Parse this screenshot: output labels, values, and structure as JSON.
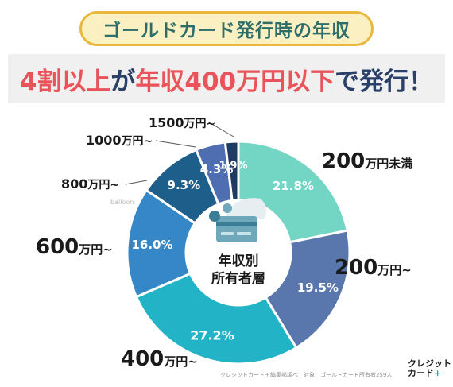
{
  "title": "ゴールドカード発行時の年収",
  "headline": {
    "part1": "4割以上",
    "part2": "が",
    "part3": "年収400万円以下",
    "part4": "で発行！"
  },
  "center_label": {
    "line1": "年収別",
    "line2": "所有者層"
  },
  "balloon_text": "balloon",
  "source_note": "クレジットカード＋編集部調べ　対象：ゴールドカード所有者259人",
  "brand": {
    "line1": "クレジット",
    "line2": "カード",
    "plus": "+"
  },
  "chart_data": {
    "type": "pie",
    "donut": true,
    "start_angle_deg": 0,
    "direction": "clockwise",
    "slices": [
      {
        "num": "200",
        "unit": "万円未満",
        "value": 21.8,
        "value_label": "21.8%",
        "color": "#73d6c5"
      },
      {
        "num": "200",
        "unit": "万円~",
        "value": 19.5,
        "value_label": "19.5%",
        "color": "#5a77ad"
      },
      {
        "num": "400",
        "unit": "万円~",
        "value": 27.2,
        "value_label": "27.2%",
        "color": "#22b3c6"
      },
      {
        "num": "600",
        "unit": "万円~",
        "value": 16.0,
        "value_label": "16.0%",
        "color": "#3587c7"
      },
      {
        "num": "800",
        "unit": "万円~",
        "value": 9.3,
        "value_label": "9.3%",
        "color": "#1e5e8a"
      },
      {
        "num": "1000",
        "unit": "万円~",
        "value": 4.3,
        "value_label": "4.3%",
        "color": "#4f6db1"
      },
      {
        "num": "1500",
        "unit": "万円~",
        "value": 1.9,
        "value_label": "1.9%",
        "color": "#1f3b63"
      }
    ]
  }
}
